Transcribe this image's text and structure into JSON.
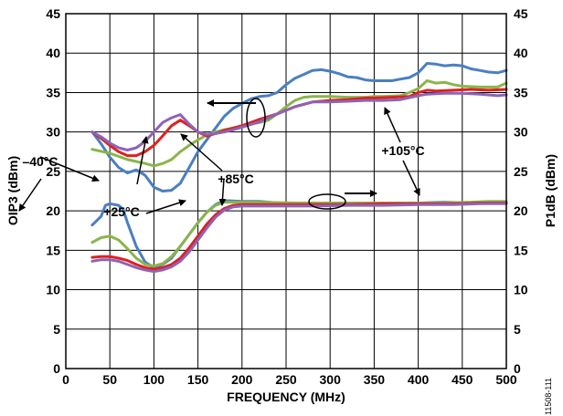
{
  "chart_data": {
    "type": "line",
    "xlabel": "FREQUENCY (MHz)",
    "ylabel_left": "OIP3 (dBm)",
    "ylabel_right": "P1dB (dBm)",
    "xlim": [
      0,
      500
    ],
    "ylim": [
      0,
      45
    ],
    "x_ticks": [
      0,
      50,
      100,
      150,
      200,
      250,
      300,
      350,
      400,
      450,
      500
    ],
    "y_ticks": [
      0,
      5,
      10,
      15,
      20,
      25,
      30,
      35,
      40,
      45
    ],
    "grid": true,
    "figure_id": "11508-111",
    "series": [
      {
        "temperature": "-40°C",
        "group": "OIP3",
        "color": "#4a7fc1",
        "points": [
          [
            30,
            30
          ],
          [
            40,
            28.5
          ],
          [
            50,
            26.8
          ],
          [
            60,
            25.5
          ],
          [
            70,
            24.8
          ],
          [
            80,
            25.2
          ],
          [
            90,
            24.5
          ],
          [
            100,
            23
          ],
          [
            110,
            22.5
          ],
          [
            120,
            22.6
          ],
          [
            130,
            23.5
          ],
          [
            140,
            25.5
          ],
          [
            150,
            27.5
          ],
          [
            160,
            29
          ],
          [
            170,
            30.5
          ],
          [
            180,
            32
          ],
          [
            190,
            33
          ],
          [
            200,
            33.6
          ],
          [
            210,
            34.2
          ],
          [
            220,
            34.5
          ],
          [
            230,
            34.6
          ],
          [
            240,
            35
          ],
          [
            250,
            36
          ],
          [
            260,
            36.8
          ],
          [
            270,
            37.3
          ],
          [
            280,
            37.8
          ],
          [
            290,
            37.9
          ],
          [
            300,
            37.7
          ],
          [
            310,
            37.4
          ],
          [
            320,
            37
          ],
          [
            330,
            36.9
          ],
          [
            340,
            36.6
          ],
          [
            350,
            36.5
          ],
          [
            360,
            36.5
          ],
          [
            370,
            36.5
          ],
          [
            380,
            36.7
          ],
          [
            390,
            36.9
          ],
          [
            400,
            37.5
          ],
          [
            410,
            38.7
          ],
          [
            420,
            38.6
          ],
          [
            430,
            38.4
          ],
          [
            440,
            38.5
          ],
          [
            450,
            38.4
          ],
          [
            460,
            38
          ],
          [
            470,
            37.8
          ],
          [
            480,
            37.6
          ],
          [
            490,
            37.5
          ],
          [
            500,
            37.8
          ]
        ]
      },
      {
        "temperature": "+25°C",
        "group": "OIP3",
        "color": "#8ab54a",
        "points": [
          [
            30,
            27.8
          ],
          [
            50,
            27.3
          ],
          [
            70,
            26.5
          ],
          [
            90,
            26
          ],
          [
            100,
            25.7
          ],
          [
            110,
            26
          ],
          [
            120,
            26.5
          ],
          [
            130,
            27.5
          ],
          [
            140,
            28.3
          ],
          [
            150,
            29
          ],
          [
            160,
            29.6
          ],
          [
            170,
            30
          ],
          [
            180,
            30.3
          ],
          [
            190,
            30.5
          ],
          [
            200,
            30.8
          ],
          [
            210,
            31
          ],
          [
            220,
            31.2
          ],
          [
            230,
            31.5
          ],
          [
            240,
            32.3
          ],
          [
            250,
            33.2
          ],
          [
            260,
            34
          ],
          [
            270,
            34.4
          ],
          [
            280,
            34.5
          ],
          [
            300,
            34.5
          ],
          [
            320,
            34.4
          ],
          [
            340,
            34.4
          ],
          [
            350,
            34.5
          ],
          [
            360,
            34.5
          ],
          [
            380,
            34.6
          ],
          [
            390,
            35
          ],
          [
            400,
            35.5
          ],
          [
            410,
            36.5
          ],
          [
            420,
            36.2
          ],
          [
            430,
            36.3
          ],
          [
            440,
            36
          ],
          [
            450,
            35.8
          ],
          [
            470,
            35.7
          ],
          [
            490,
            35.7
          ],
          [
            500,
            36.2
          ]
        ]
      },
      {
        "temperature": "+85°C",
        "group": "OIP3",
        "color": "#e02020",
        "points": [
          [
            30,
            30
          ],
          [
            40,
            29.2
          ],
          [
            50,
            28.3
          ],
          [
            60,
            27.5
          ],
          [
            70,
            27
          ],
          [
            80,
            27
          ],
          [
            90,
            27.5
          ],
          [
            100,
            28.3
          ],
          [
            110,
            29.5
          ],
          [
            120,
            30.8
          ],
          [
            130,
            31.5
          ],
          [
            140,
            30.8
          ],
          [
            150,
            30
          ],
          [
            160,
            29.5
          ],
          [
            170,
            29.8
          ],
          [
            180,
            30.2
          ],
          [
            200,
            30.8
          ],
          [
            220,
            31.6
          ],
          [
            240,
            32.3
          ],
          [
            260,
            33.2
          ],
          [
            280,
            33.8
          ],
          [
            300,
            34
          ],
          [
            320,
            34.1
          ],
          [
            340,
            34.3
          ],
          [
            350,
            34.3
          ],
          [
            370,
            34.4
          ],
          [
            390,
            34.5
          ],
          [
            400,
            35
          ],
          [
            410,
            35.3
          ],
          [
            420,
            35.2
          ],
          [
            440,
            35.3
          ],
          [
            460,
            35.4
          ],
          [
            480,
            35.3
          ],
          [
            500,
            35.4
          ]
        ]
      },
      {
        "temperature": "+105°C",
        "group": "OIP3",
        "color": "#8e63b8",
        "points": [
          [
            30,
            30
          ],
          [
            40,
            29.4
          ],
          [
            50,
            28.6
          ],
          [
            60,
            28
          ],
          [
            70,
            27.7
          ],
          [
            80,
            28
          ],
          [
            90,
            28.8
          ],
          [
            100,
            30
          ],
          [
            110,
            31.2
          ],
          [
            120,
            31.8
          ],
          [
            130,
            32.2
          ],
          [
            140,
            31
          ],
          [
            150,
            30
          ],
          [
            160,
            29.7
          ],
          [
            170,
            29.8
          ],
          [
            180,
            30
          ],
          [
            200,
            30.6
          ],
          [
            220,
            31.3
          ],
          [
            240,
            32.3
          ],
          [
            260,
            33.2
          ],
          [
            280,
            33.8
          ],
          [
            300,
            33.8
          ],
          [
            320,
            33.9
          ],
          [
            340,
            34
          ],
          [
            360,
            34
          ],
          [
            380,
            34.1
          ],
          [
            400,
            34.6
          ],
          [
            410,
            34.8
          ],
          [
            430,
            34.9
          ],
          [
            450,
            34.9
          ],
          [
            470,
            34.8
          ],
          [
            490,
            34.6
          ],
          [
            500,
            34.7
          ]
        ]
      },
      {
        "temperature": "-40°C",
        "group": "P1dB",
        "color": "#4a7fc1",
        "points": [
          [
            30,
            18.2
          ],
          [
            40,
            19.3
          ],
          [
            45,
            20.7
          ],
          [
            50,
            20.9
          ],
          [
            55,
            20.8
          ],
          [
            60,
            20.7
          ],
          [
            65,
            20.2
          ],
          [
            70,
            18.5
          ],
          [
            80,
            15.5
          ],
          [
            90,
            13.5
          ],
          [
            100,
            12.8
          ],
          [
            110,
            13.2
          ],
          [
            120,
            14
          ],
          [
            130,
            15.5
          ],
          [
            140,
            17
          ],
          [
            150,
            18.5
          ],
          [
            160,
            19.8
          ],
          [
            170,
            20.8
          ],
          [
            180,
            21.3
          ],
          [
            200,
            21.2
          ],
          [
            220,
            21.2
          ],
          [
            240,
            21
          ],
          [
            260,
            21
          ],
          [
            280,
            21
          ],
          [
            300,
            21
          ],
          [
            320,
            21
          ],
          [
            350,
            21
          ],
          [
            380,
            21
          ],
          [
            400,
            21
          ],
          [
            430,
            21.1
          ],
          [
            460,
            21
          ],
          [
            500,
            21
          ]
        ]
      },
      {
        "temperature": "+25°C",
        "group": "P1dB",
        "color": "#8ab54a",
        "points": [
          [
            30,
            16
          ],
          [
            40,
            16.6
          ],
          [
            50,
            16.8
          ],
          [
            60,
            16.3
          ],
          [
            70,
            15.2
          ],
          [
            80,
            14
          ],
          [
            90,
            13.2
          ],
          [
            100,
            13
          ],
          [
            110,
            13.3
          ],
          [
            120,
            14.2
          ],
          [
            130,
            15.5
          ],
          [
            140,
            17
          ],
          [
            150,
            18.5
          ],
          [
            160,
            19.8
          ],
          [
            170,
            20.7
          ],
          [
            180,
            21.1
          ],
          [
            200,
            21.1
          ],
          [
            220,
            21.1
          ],
          [
            260,
            21
          ],
          [
            300,
            21
          ],
          [
            340,
            21
          ],
          [
            380,
            21
          ],
          [
            420,
            21
          ],
          [
            460,
            21.1
          ],
          [
            480,
            21.2
          ],
          [
            500,
            21.2
          ]
        ]
      },
      {
        "temperature": "+85°C",
        "group": "P1dB",
        "color": "#e02020",
        "points": [
          [
            30,
            14.1
          ],
          [
            40,
            14.2
          ],
          [
            50,
            14.2
          ],
          [
            60,
            14
          ],
          [
            70,
            13.7
          ],
          [
            80,
            13.2
          ],
          [
            90,
            12.8
          ],
          [
            100,
            12.6
          ],
          [
            110,
            12.8
          ],
          [
            120,
            13.2
          ],
          [
            130,
            14
          ],
          [
            140,
            15.3
          ],
          [
            150,
            16.8
          ],
          [
            160,
            18.3
          ],
          [
            170,
            19.5
          ],
          [
            180,
            20.3
          ],
          [
            190,
            20.7
          ],
          [
            200,
            20.8
          ],
          [
            240,
            20.8
          ],
          [
            280,
            20.8
          ],
          [
            320,
            20.8
          ],
          [
            360,
            20.9
          ],
          [
            400,
            20.9
          ],
          [
            440,
            20.9
          ],
          [
            470,
            21
          ],
          [
            500,
            21
          ]
        ]
      },
      {
        "temperature": "+105°C",
        "group": "P1dB",
        "color": "#8e63b8",
        "points": [
          [
            30,
            13.6
          ],
          [
            40,
            13.8
          ],
          [
            50,
            13.8
          ],
          [
            60,
            13.6
          ],
          [
            70,
            13.2
          ],
          [
            80,
            12.8
          ],
          [
            90,
            12.5
          ],
          [
            100,
            12.3
          ],
          [
            110,
            12.5
          ],
          [
            120,
            12.9
          ],
          [
            130,
            13.6
          ],
          [
            140,
            14.8
          ],
          [
            150,
            16.3
          ],
          [
            160,
            17.8
          ],
          [
            170,
            19.2
          ],
          [
            180,
            20.1
          ],
          [
            190,
            20.5
          ],
          [
            200,
            20.6
          ],
          [
            240,
            20.6
          ],
          [
            280,
            20.6
          ],
          [
            320,
            20.7
          ],
          [
            360,
            20.7
          ],
          [
            400,
            20.8
          ],
          [
            440,
            20.8
          ],
          [
            470,
            20.9
          ],
          [
            500,
            20.9
          ]
        ]
      }
    ],
    "annotations": [
      {
        "text": "–40°C"
      },
      {
        "text": "+25°C"
      },
      {
        "text": "+85°C"
      },
      {
        "text": "+105°C"
      }
    ]
  }
}
